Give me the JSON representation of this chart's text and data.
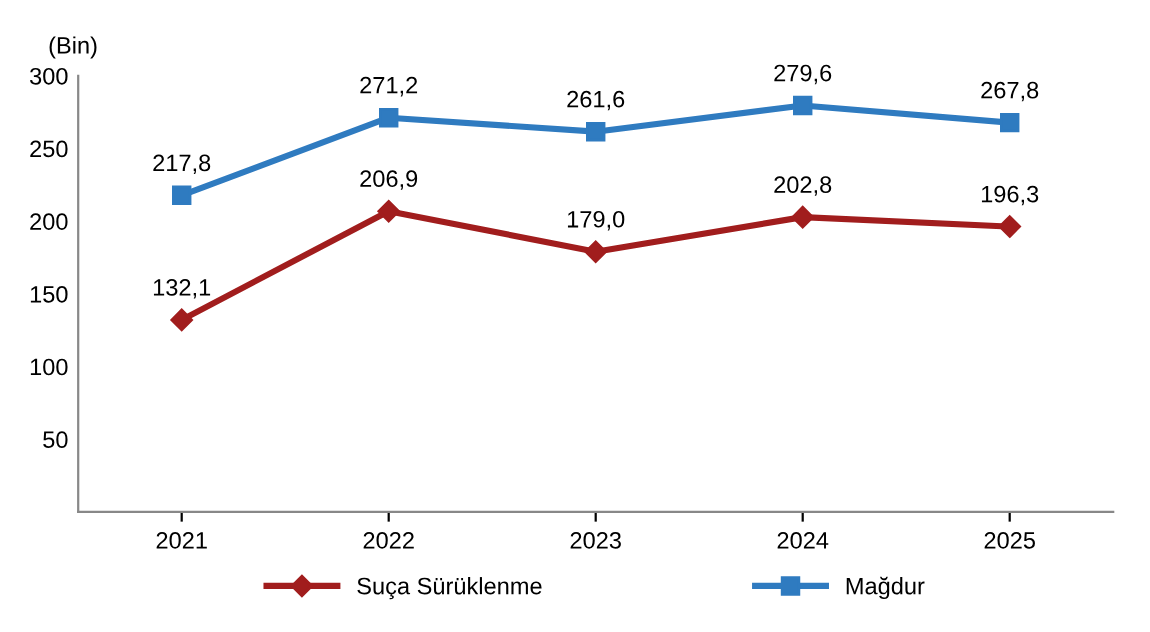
{
  "chart_data": {
    "type": "line",
    "ylabel": "(Bin)",
    "categories": [
      "2021",
      "2022",
      "2023",
      "2024",
      "2025"
    ],
    "series": [
      {
        "name": "Suça Sürüklenme",
        "color": "#a11d1d",
        "marker": "diamond",
        "values": [
          132.1,
          206.9,
          179.0,
          202.8,
          196.3
        ],
        "value_labels": [
          "132,1",
          "206,9",
          "179,0",
          "202,8",
          "196,3"
        ]
      },
      {
        "name": "Mağdur",
        "color": "#2f7bc0",
        "marker": "square",
        "values": [
          217.8,
          271.2,
          261.6,
          279.6,
          267.8
        ],
        "value_labels": [
          "217,8",
          "271,2",
          "261,6",
          "279,6",
          "267,8"
        ]
      }
    ],
    "ylim": [
      0,
      300
    ],
    "yticks": [
      50,
      100,
      150,
      200,
      250,
      300
    ],
    "grid": false,
    "legend": "bottom",
    "line_style": "solid"
  }
}
